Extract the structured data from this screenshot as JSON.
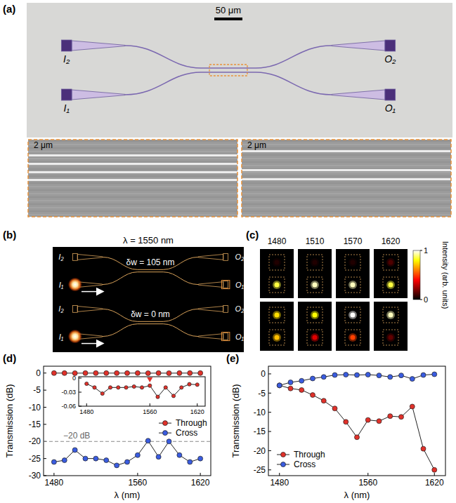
{
  "panels": {
    "a": {
      "letter": "(a)",
      "scale_bar": "50 μm",
      "ports": [
        "I₂",
        "O₂",
        "I₁",
        "O₁"
      ],
      "sem_scale_bars": [
        "2 μm",
        "2 μm"
      ]
    },
    "b": {
      "letter": "(b)",
      "title": "λ = 1550 nm",
      "ports": [
        "I₂",
        "O₂",
        "I₁",
        "O₁"
      ],
      "devices": [
        {
          "label": "δw = 105 nm"
        },
        {
          "label": "δw = 0 nm"
        }
      ]
    },
    "c": {
      "letter": "(c)",
      "wavelengths": [
        1480,
        1510,
        1570,
        1620
      ],
      "top_port_intensity": [
        [
          0.05,
          0.05,
          0.05,
          0.12
        ],
        [
          0.75,
          0.8,
          1,
          0.95
        ]
      ],
      "bottom_port_intensity": [
        [
          0.85,
          0.95,
          0.95,
          0.85
        ],
        [
          0.7,
          0.35,
          0.5,
          0.15
        ]
      ],
      "colorbar": {
        "label": "Intensity (arb. units)",
        "range": [
          0,
          1
        ],
        "ticks": [
          0,
          1
        ]
      }
    },
    "d": {
      "letter": "(d)"
    },
    "e": {
      "letter": "(e)"
    }
  },
  "chart_data": [
    {
      "type": "line",
      "x_label": "λ (nm)",
      "y_label": "Transmission (dB)",
      "x": [
        1480,
        1490,
        1500,
        1510,
        1520,
        1530,
        1540,
        1550,
        1560,
        1570,
        1580,
        1590,
        1600,
        1610,
        1620
      ],
      "xlim": [
        1470,
        1630
      ],
      "xticks": [
        1480,
        1560,
        1620
      ],
      "ylim": [
        -30,
        2
      ],
      "yticks": [
        -30,
        -25,
        -20,
        -15,
        -10,
        -5,
        0
      ],
      "series": [
        {
          "name": "Through",
          "color": "#e0312a",
          "marker": "circle",
          "values": [
            -0.012,
            -0.02,
            -0.033,
            -0.02,
            -0.02,
            -0.02,
            -0.018,
            -0.02,
            -0.016,
            -0.04,
            -0.02,
            -0.038,
            -0.02,
            -0.013,
            -0.014
          ]
        },
        {
          "name": "Cross",
          "color": "#3a5ce0",
          "marker": "circle",
          "values": [
            -26,
            -25.5,
            -22.5,
            -25,
            -25,
            -25.5,
            -27,
            -26,
            -24,
            -19.8,
            -24.5,
            -20,
            -24,
            -26,
            -25
          ]
        }
      ],
      "annotations": [
        {
          "text": "−20 dB",
          "y": -20
        }
      ],
      "legend": "right"
    },
    {
      "type": "line",
      "x": [
        1480,
        1490,
        1500,
        1510,
        1520,
        1530,
        1540,
        1550,
        1560,
        1570,
        1580,
        1590,
        1600,
        1610,
        1620
      ],
      "xlim": [
        1470,
        1630
      ],
      "xticks": [
        1480,
        1560,
        1620
      ],
      "ylim": [
        -0.06,
        0.003
      ],
      "yticks": [
        -0.06,
        -0.03,
        0
      ],
      "series": [
        {
          "color": "#e0312a",
          "marker": "circle",
          "values": [
            -0.012,
            -0.02,
            -0.033,
            -0.02,
            -0.02,
            -0.02,
            -0.018,
            -0.02,
            -0.016,
            -0.04,
            -0.02,
            -0.038,
            -0.02,
            -0.013,
            -0.014
          ]
        }
      ],
      "arrow_x": 1560
    },
    {
      "type": "line",
      "x_label": "λ (nm)",
      "y_label": "Transmission (dB)",
      "x": [
        1480,
        1490,
        1500,
        1510,
        1520,
        1530,
        1540,
        1550,
        1560,
        1570,
        1580,
        1590,
        1600,
        1610,
        1620
      ],
      "xlim": [
        1470,
        1630
      ],
      "xticks": [
        1480,
        1560,
        1620
      ],
      "ylim": [
        -26.5,
        2
      ],
      "yticks": [
        -25,
        -20,
        -15,
        -10,
        -5,
        0
      ],
      "series": [
        {
          "name": "Through",
          "color": "#e0312a",
          "marker": "circle",
          "values": [
            -3,
            -3.8,
            -4.2,
            -5.5,
            -7,
            -9,
            -12.5,
            -16.5,
            -12,
            -12.3,
            -11,
            -11.2,
            -8.5,
            -19.5,
            -25
          ]
        },
        {
          "name": "Cross",
          "color": "#3a5ce0",
          "marker": "circle",
          "values": [
            -3,
            -2.2,
            -1.8,
            -1.2,
            -0.8,
            -0.3,
            -0.2,
            -0.3,
            -0.2,
            -0.4,
            -0.8,
            -0.4,
            -1.3,
            -0.3,
            -0.1
          ]
        }
      ],
      "legend": "bottom-left"
    }
  ]
}
